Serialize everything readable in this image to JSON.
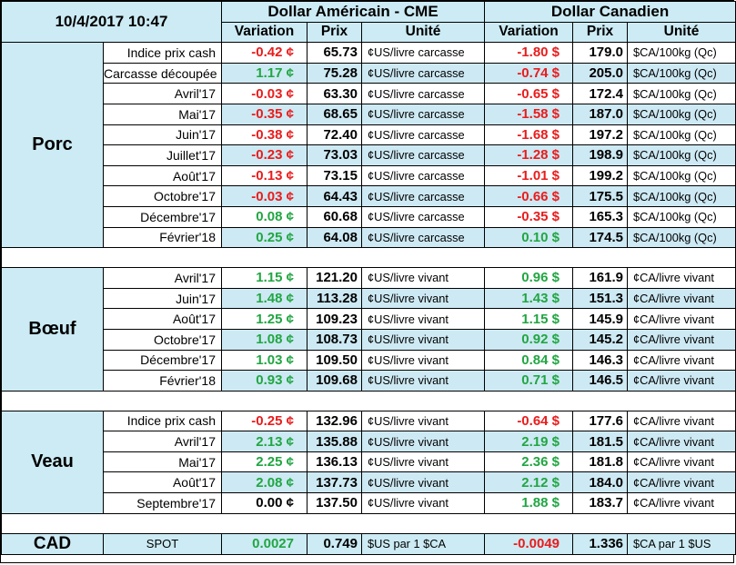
{
  "header": {
    "datetime": "10/4/2017 10:47",
    "usd_group": "Dollar Américain - CME",
    "cad_group": "Dollar Canadien",
    "col_variation": "Variation",
    "col_prix": "Prix",
    "col_unite": "Unité"
  },
  "sections": {
    "porc": {
      "name": "Porc",
      "rows": [
        {
          "label": "Indice prix cash",
          "usd_var": "-0.42 ¢",
          "usd_sign": "neg",
          "usd_price": "65.73",
          "usd_unit": "¢US/livre carcasse",
          "cad_var": "-1.80 $",
          "cad_sign": "neg",
          "cad_price": "179.0",
          "cad_unit": "$CA/100kg (Qc)"
        },
        {
          "label": "Carcasse découpée",
          "usd_var": "1.17 ¢",
          "usd_sign": "pos",
          "usd_price": "75.28",
          "usd_unit": "¢US/livre carcasse",
          "cad_var": "-0.74 $",
          "cad_sign": "neg",
          "cad_price": "205.0",
          "cad_unit": "$CA/100kg (Qc)"
        },
        {
          "label": "Avril'17",
          "usd_var": "-0.03 ¢",
          "usd_sign": "neg",
          "usd_price": "63.30",
          "usd_unit": "¢US/livre carcasse",
          "cad_var": "-0.65 $",
          "cad_sign": "neg",
          "cad_price": "172.4",
          "cad_unit": "$CA/100kg (Qc)"
        },
        {
          "label": "Mai'17",
          "usd_var": "-0.35 ¢",
          "usd_sign": "neg",
          "usd_price": "68.65",
          "usd_unit": "¢US/livre carcasse",
          "cad_var": "-1.58 $",
          "cad_sign": "neg",
          "cad_price": "187.0",
          "cad_unit": "$CA/100kg (Qc)"
        },
        {
          "label": "Juin'17",
          "usd_var": "-0.38 ¢",
          "usd_sign": "neg",
          "usd_price": "72.40",
          "usd_unit": "¢US/livre carcasse",
          "cad_var": "-1.68 $",
          "cad_sign": "neg",
          "cad_price": "197.2",
          "cad_unit": "$CA/100kg (Qc)"
        },
        {
          "label": "Juillet'17",
          "usd_var": "-0.23 ¢",
          "usd_sign": "neg",
          "usd_price": "73.03",
          "usd_unit": "¢US/livre carcasse",
          "cad_var": "-1.28 $",
          "cad_sign": "neg",
          "cad_price": "198.9",
          "cad_unit": "$CA/100kg (Qc)"
        },
        {
          "label": "Août'17",
          "usd_var": "-0.13 ¢",
          "usd_sign": "neg",
          "usd_price": "73.15",
          "usd_unit": "¢US/livre carcasse",
          "cad_var": "-1.01 $",
          "cad_sign": "neg",
          "cad_price": "199.2",
          "cad_unit": "$CA/100kg (Qc)"
        },
        {
          "label": "Octobre'17",
          "usd_var": "-0.03 ¢",
          "usd_sign": "neg",
          "usd_price": "64.43",
          "usd_unit": "¢US/livre carcasse",
          "cad_var": "-0.66 $",
          "cad_sign": "neg",
          "cad_price": "175.5",
          "cad_unit": "$CA/100kg (Qc)"
        },
        {
          "label": "Décembre'17",
          "usd_var": "0.08 ¢",
          "usd_sign": "pos",
          "usd_price": "60.68",
          "usd_unit": "¢US/livre carcasse",
          "cad_var": "-0.35 $",
          "cad_sign": "neg",
          "cad_price": "165.3",
          "cad_unit": "$CA/100kg (Qc)"
        },
        {
          "label": "Février'18",
          "usd_var": "0.25 ¢",
          "usd_sign": "pos",
          "usd_price": "64.08",
          "usd_unit": "¢US/livre carcasse",
          "cad_var": "0.10 $",
          "cad_sign": "pos",
          "cad_price": "174.5",
          "cad_unit": "$CA/100kg (Qc)"
        }
      ]
    },
    "boeuf": {
      "name": "Bœuf",
      "rows": [
        {
          "label": "Avril'17",
          "usd_var": "1.15 ¢",
          "usd_sign": "pos",
          "usd_price": "121.20",
          "usd_unit": "¢US/livre vivant",
          "cad_var": "0.96 $",
          "cad_sign": "pos",
          "cad_price": "161.9",
          "cad_unit": "¢CA/livre vivant"
        },
        {
          "label": "Juin'17",
          "usd_var": "1.48 ¢",
          "usd_sign": "pos",
          "usd_price": "113.28",
          "usd_unit": "¢US/livre vivant",
          "cad_var": "1.43 $",
          "cad_sign": "pos",
          "cad_price": "151.3",
          "cad_unit": "¢CA/livre vivant"
        },
        {
          "label": "Août'17",
          "usd_var": "1.25 ¢",
          "usd_sign": "pos",
          "usd_price": "109.23",
          "usd_unit": "¢US/livre vivant",
          "cad_var": "1.15 $",
          "cad_sign": "pos",
          "cad_price": "145.9",
          "cad_unit": "¢CA/livre vivant"
        },
        {
          "label": "Octobre'17",
          "usd_var": "1.08 ¢",
          "usd_sign": "pos",
          "usd_price": "108.73",
          "usd_unit": "¢US/livre vivant",
          "cad_var": "0.92 $",
          "cad_sign": "pos",
          "cad_price": "145.2",
          "cad_unit": "¢CA/livre vivant"
        },
        {
          "label": "Décembre'17",
          "usd_var": "1.03 ¢",
          "usd_sign": "pos",
          "usd_price": "109.50",
          "usd_unit": "¢US/livre vivant",
          "cad_var": "0.84 $",
          "cad_sign": "pos",
          "cad_price": "146.3",
          "cad_unit": "¢CA/livre vivant"
        },
        {
          "label": "Février'18",
          "usd_var": "0.93 ¢",
          "usd_sign": "pos",
          "usd_price": "109.68",
          "usd_unit": "¢US/livre vivant",
          "cad_var": "0.71 $",
          "cad_sign": "pos",
          "cad_price": "146.5",
          "cad_unit": "¢CA/livre vivant"
        }
      ]
    },
    "veau": {
      "name": "Veau",
      "rows": [
        {
          "label": "Indice prix cash",
          "usd_var": "-0.25 ¢",
          "usd_sign": "neg",
          "usd_price": "132.96",
          "usd_unit": "¢US/livre vivant",
          "cad_var": "-0.64 $",
          "cad_sign": "neg",
          "cad_price": "177.6",
          "cad_unit": "¢CA/livre vivant"
        },
        {
          "label": "Avril'17",
          "usd_var": "2.13 ¢",
          "usd_sign": "pos",
          "usd_price": "135.88",
          "usd_unit": "¢US/livre vivant",
          "cad_var": "2.19 $",
          "cad_sign": "pos",
          "cad_price": "181.5",
          "cad_unit": "¢CA/livre vivant"
        },
        {
          "label": "Mai'17",
          "usd_var": "2.25 ¢",
          "usd_sign": "pos",
          "usd_price": "136.13",
          "usd_unit": "¢US/livre vivant",
          "cad_var": "2.36 $",
          "cad_sign": "pos",
          "cad_price": "181.8",
          "cad_unit": "¢CA/livre vivant"
        },
        {
          "label": "Août'17",
          "usd_var": "2.08 ¢",
          "usd_sign": "pos",
          "usd_price": "137.73",
          "usd_unit": "¢US/livre vivant",
          "cad_var": "2.12 $",
          "cad_sign": "pos",
          "cad_price": "184.0",
          "cad_unit": "¢CA/livre vivant"
        },
        {
          "label": "Septembre'17",
          "usd_var": "0.00 ¢",
          "usd_sign": "zero",
          "usd_price": "137.50",
          "usd_unit": "¢US/livre vivant",
          "cad_var": "1.88 $",
          "cad_sign": "pos",
          "cad_price": "183.7",
          "cad_unit": "¢CA/livre vivant"
        }
      ]
    }
  },
  "cad": {
    "name": "CAD",
    "label": "SPOT",
    "usd_var": "0.0027",
    "usd_sign": "pos",
    "usd_price": "0.749",
    "usd_unit": "$US par 1 $CA",
    "cad_var": "-0.0049",
    "cad_sign": "neg",
    "cad_price": "1.336",
    "cad_unit": "$CA par 1 $US"
  },
  "colors": {
    "header_bg": "#ccebf4",
    "stripe_bg": "#cde9f3",
    "negative": "#ea1c1c",
    "positive": "#21a642"
  }
}
